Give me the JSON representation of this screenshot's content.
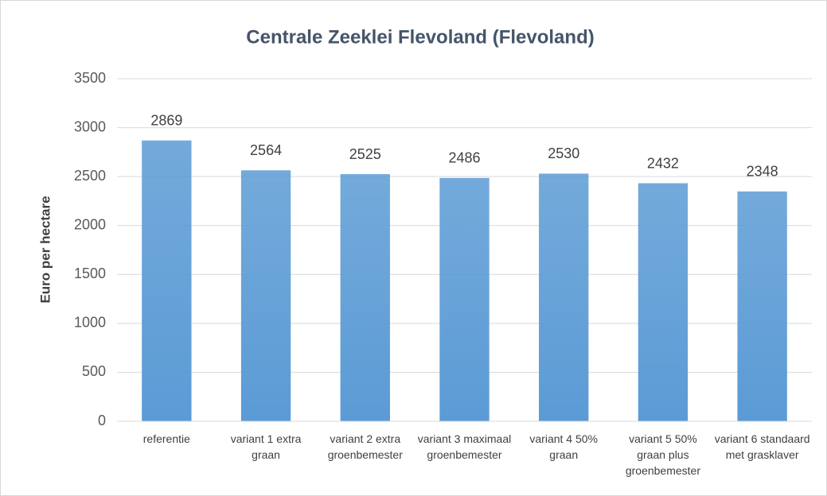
{
  "chart_data": {
    "type": "bar",
    "title": "Centrale Zeeklei Flevoland (Flevoland)",
    "y_label": "Euro per hectare",
    "categories": [
      "referentie",
      "variant 1 extra graan",
      "variant 2 extra groenbemester",
      "variant 3 maximaal groenbemester",
      "variant 4 50% graan",
      "variant 5 50% graan plus groenbemester",
      "variant 6 standaard met grasklaver"
    ],
    "values": [
      2869,
      2564,
      2525,
      2486,
      2530,
      2432,
      2348
    ],
    "color": "#5b9bd5",
    "ylim": [
      0,
      3500
    ],
    "yticks": [
      0,
      500,
      1000,
      1500,
      2000,
      2500,
      3000,
      3500
    ],
    "grid": true
  }
}
